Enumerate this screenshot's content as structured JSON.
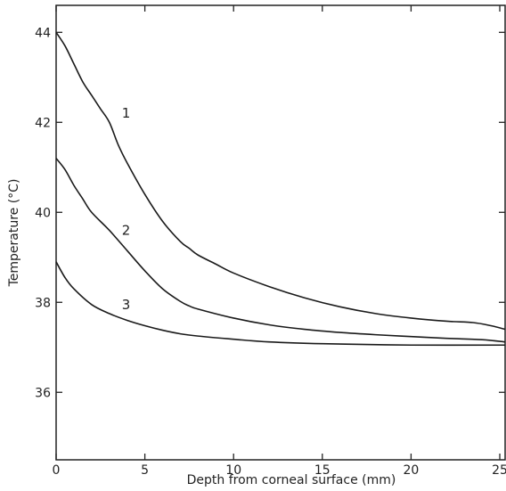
{
  "chart_data": {
    "type": "line",
    "title": "",
    "xlabel": "Depth from corneal surface (mm)",
    "ylabel": "Temperature (°C)",
    "xlim": [
      0,
      25.3
    ],
    "ylim": [
      34.5,
      44.6
    ],
    "xticks": [
      0,
      5,
      10,
      15,
      20,
      25
    ],
    "yticks": [
      36,
      38,
      40,
      42,
      44
    ],
    "grid": false,
    "legend": "none",
    "color": "#1a1a1a",
    "series": [
      {
        "label": "1",
        "label_at": [
          3.7,
          42.1
        ],
        "x": [
          0,
          0.5,
          1,
          1.5,
          2,
          2.5,
          3,
          3.5,
          4,
          5,
          6,
          7,
          7.5,
          8,
          9,
          10,
          12,
          14,
          16,
          18,
          20,
          22,
          23.5,
          24.5,
          25.3
        ],
        "y": [
          44.0,
          43.7,
          43.3,
          42.9,
          42.6,
          42.3,
          42.0,
          41.5,
          41.1,
          40.4,
          39.8,
          39.35,
          39.2,
          39.05,
          38.85,
          38.65,
          38.35,
          38.1,
          37.9,
          37.75,
          37.65,
          37.58,
          37.55,
          37.48,
          37.4
        ]
      },
      {
        "label": "2",
        "label_at": [
          3.7,
          39.5
        ],
        "x": [
          0,
          0.5,
          1,
          1.5,
          2,
          3,
          4,
          5,
          6,
          7,
          7.5,
          8,
          10,
          12,
          14,
          16,
          18,
          20,
          22,
          24,
          25.3
        ],
        "y": [
          41.2,
          40.95,
          40.6,
          40.3,
          40.0,
          39.6,
          39.15,
          38.7,
          38.3,
          38.02,
          37.92,
          37.85,
          37.65,
          37.5,
          37.4,
          37.33,
          37.28,
          37.24,
          37.2,
          37.17,
          37.12
        ]
      },
      {
        "label": "3",
        "label_at": [
          3.7,
          37.85
        ],
        "x": [
          0,
          0.5,
          1,
          2,
          3,
          4,
          5,
          6,
          7,
          8,
          10,
          12,
          15,
          20,
          25.3
        ],
        "y": [
          38.9,
          38.55,
          38.3,
          37.95,
          37.75,
          37.6,
          37.48,
          37.38,
          37.3,
          37.25,
          37.18,
          37.12,
          37.08,
          37.05,
          37.05
        ]
      }
    ]
  }
}
